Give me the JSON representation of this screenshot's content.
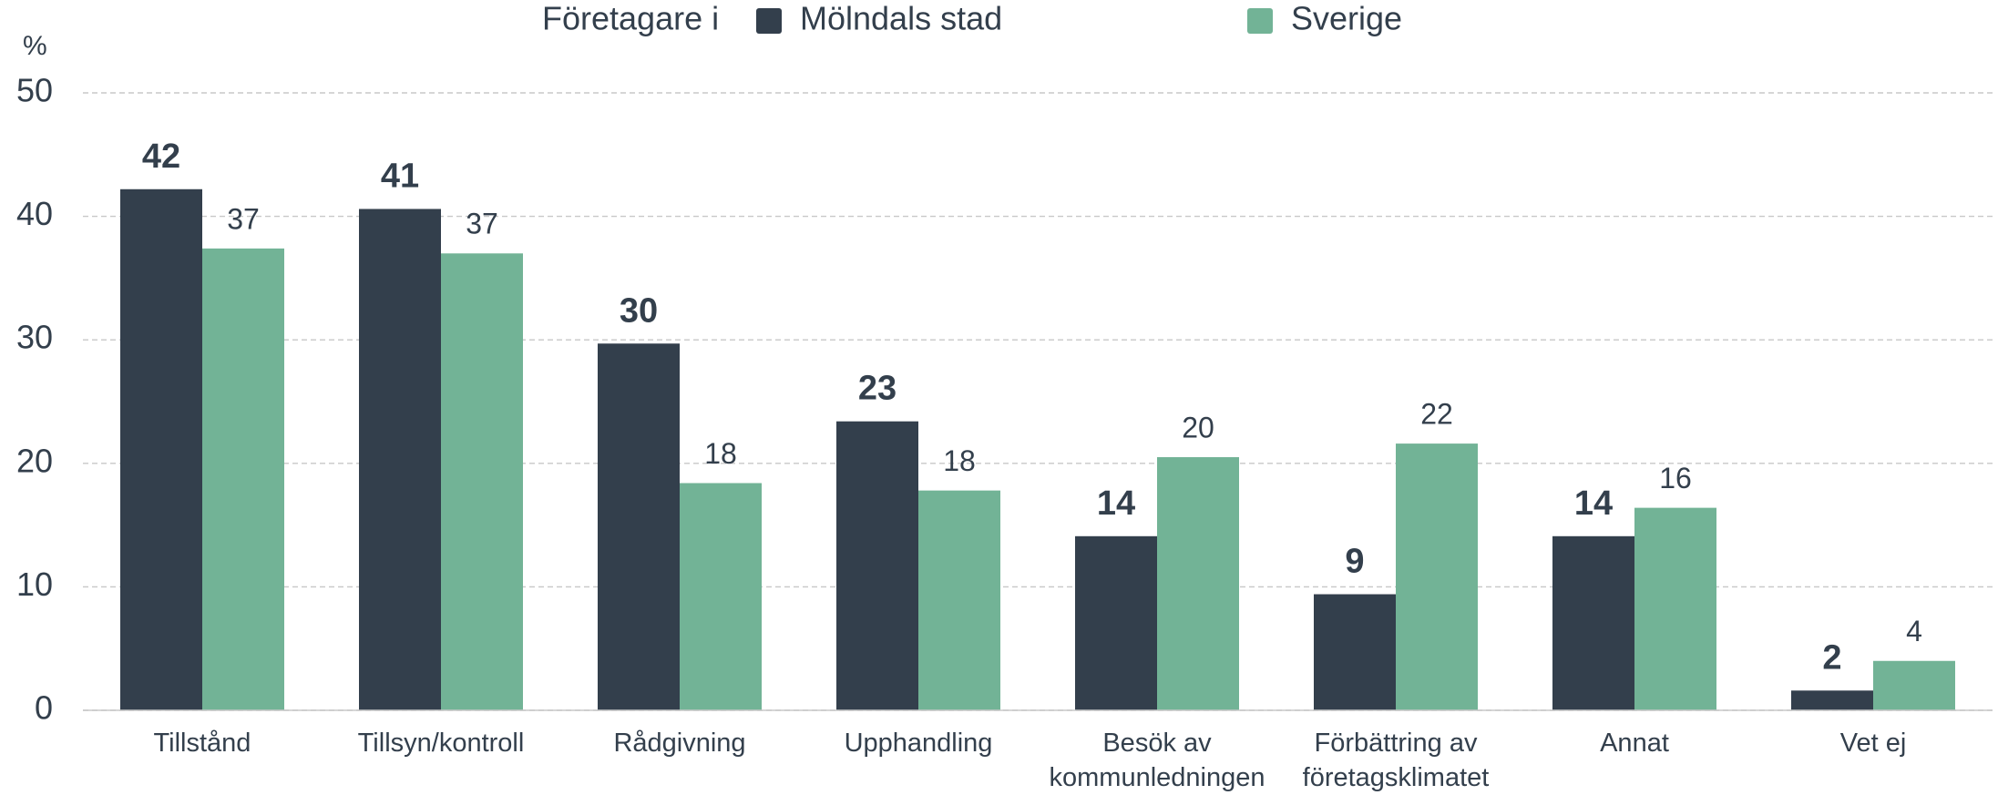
{
  "chart_data": {
    "type": "bar",
    "y_unit": "%",
    "legend_title": "Företagare i",
    "categories": [
      "Tillstånd",
      "Tillsyn/kontroll",
      "Rådgivning",
      "Upphandling",
      "Besök av kommunledningen",
      "Förbättring av företagsklimatet",
      "Annat",
      "Vet ej"
    ],
    "series": [
      {
        "name": "Mölndals stad",
        "color": "#333f4c",
        "values": [
          42.2,
          40.6,
          29.7,
          23.4,
          14.1,
          9.4,
          14.1,
          1.6
        ],
        "value_labels": [
          "42",
          "41",
          "30",
          "23",
          "14",
          "9",
          "14",
          "2"
        ]
      },
      {
        "name": "Sverige",
        "color": "#72b396",
        "values": [
          37.4,
          37.0,
          18.4,
          17.8,
          20.5,
          21.6,
          16.4,
          4.0
        ],
        "value_labels": [
          "37",
          "37",
          "18",
          "18",
          "20",
          "22",
          "16",
          "4"
        ]
      }
    ],
    "ylim": [
      0,
      50
    ],
    "yticks": [
      0,
      10,
      20,
      30,
      40,
      50
    ],
    "grid": true
  }
}
